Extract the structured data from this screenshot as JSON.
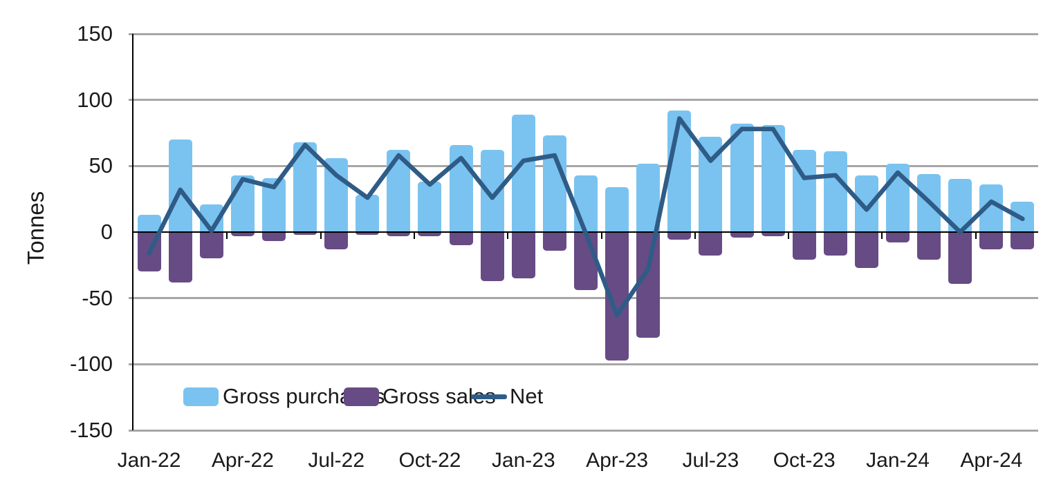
{
  "chart_data": {
    "type": "bar",
    "subtype": "combo-bar-line",
    "title": "",
    "xlabel": "",
    "ylabel": "Tonnes",
    "ylim": [
      -150,
      150
    ],
    "y_ticks": [
      150,
      100,
      50,
      0,
      -50,
      -100,
      -150
    ],
    "grid": "horizontal",
    "gridline_color": "#a6a6a6",
    "axis_color": "#000000",
    "text_color": "#1a1a1a",
    "legend_position": "bottom-inside",
    "categories": [
      "Jan-22",
      "Feb-22",
      "Mar-22",
      "Apr-22",
      "May-22",
      "Jun-22",
      "Jul-22",
      "Aug-22",
      "Sep-22",
      "Oct-22",
      "Nov-22",
      "Dec-22",
      "Jan-23",
      "Feb-23",
      "Mar-23",
      "Apr-23",
      "May-23",
      "Jun-23",
      "Jul-23",
      "Aug-23",
      "Sep-23",
      "Oct-23",
      "Nov-23",
      "Dec-23",
      "Jan-24",
      "Feb-24",
      "Mar-24",
      "Apr-24",
      "May-24"
    ],
    "x_tick_labels": [
      "Jan-22",
      "Apr-22",
      "Jul-22",
      "Oct-22",
      "Jan-23",
      "Apr-23",
      "Jul-23",
      "Oct-23",
      "Jan-24",
      "Apr-24"
    ],
    "series": [
      {
        "name": "Gross purchases",
        "type": "bar",
        "color": "#7ac3f0",
        "values": [
          13,
          70,
          21,
          43,
          41,
          68,
          56,
          28,
          62,
          38,
          66,
          62,
          89,
          73,
          43,
          34,
          52,
          92,
          72,
          82,
          81,
          62,
          61,
          43,
          52,
          44,
          40,
          36,
          23
        ]
      },
      {
        "name": "Gross sales",
        "type": "bar",
        "color": "#674b84",
        "values": [
          -30,
          -38,
          -20,
          -3,
          -7,
          -2,
          -13,
          -2,
          -3,
          -3,
          -10,
          -37,
          -35,
          -14,
          -44,
          -97,
          -80,
          -6,
          -18,
          -4,
          -3,
          -21,
          -18,
          -27,
          -8,
          -21,
          -39,
          -13,
          -13
        ]
      },
      {
        "name": "Net",
        "type": "line",
        "color": "#2f5c87",
        "values": [
          -16,
          32,
          1,
          40,
          34,
          66,
          43,
          26,
          58,
          36,
          56,
          26,
          54,
          58,
          -1,
          -63,
          -28,
          86,
          54,
          78,
          78,
          41,
          43,
          17,
          45,
          23,
          0,
          23,
          10
        ]
      }
    ]
  }
}
